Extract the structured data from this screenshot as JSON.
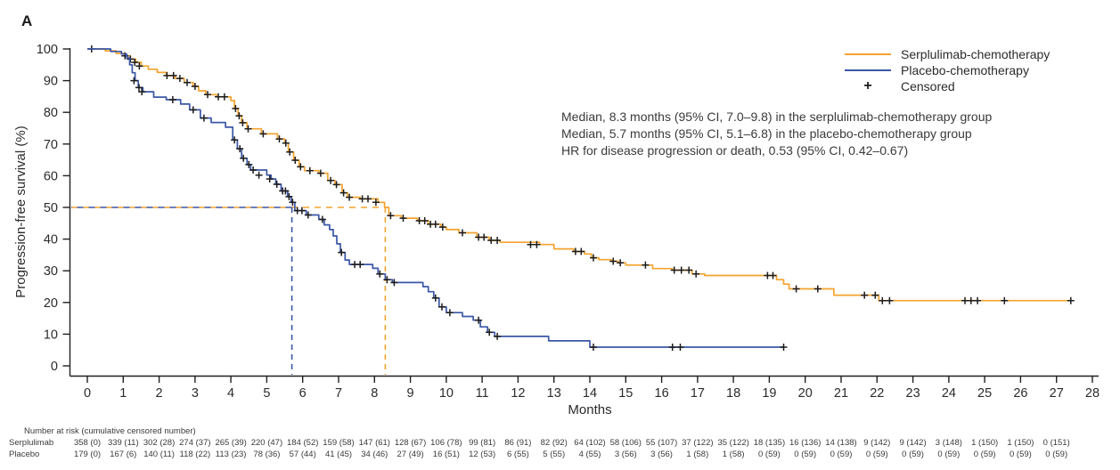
{
  "chart_data": {
    "type": "line",
    "subtype": "kaplan-meier-step-curves",
    "panel_label": "A",
    "xlabel": "Months",
    "ylabel": "Progression-free survival (%)",
    "xlim": [
      0,
      28
    ],
    "ylim": [
      0,
      100
    ],
    "xticks": [
      0,
      1,
      2,
      3,
      4,
      5,
      6,
      7,
      8,
      9,
      10,
      11,
      12,
      13,
      14,
      15,
      16,
      17,
      18,
      19,
      20,
      21,
      22,
      23,
      24,
      25,
      26,
      27,
      28
    ],
    "yticks": [
      0,
      10,
      20,
      30,
      40,
      50,
      60,
      70,
      80,
      90,
      100
    ],
    "grid": false,
    "legend_position": "top-right",
    "colors": {
      "serplulimab": "#F5A32F",
      "placebo": "#3A57A7",
      "censor": "#1c1c1c",
      "axis": "#231f20"
    },
    "medians": {
      "serplulimab_months": 8.3,
      "placebo_months": 5.7,
      "guide_percent": 50
    },
    "annotations": [
      "Median, 8.3 months (95% CI, 7.0–9.8) in the serplulimab-chemotherapy group",
      "Median, 5.7 months (95% CI, 5.1–6.8) in the placebo-chemotherapy group",
      "HR for disease progression or death, 0.53 (95% CI, 0.42–0.67)"
    ],
    "legend": {
      "entries": [
        {
          "label": "Serplulimab-chemotherapy",
          "swatch": "line",
          "color_key": "serplulimab"
        },
        {
          "label": "Placebo-chemotherapy",
          "swatch": "line",
          "color_key": "placebo"
        },
        {
          "label": "Censored",
          "swatch": "plus"
        }
      ]
    },
    "series": [
      {
        "name": "Serplulimab-chemotherapy",
        "color_key": "serplulimab",
        "steps": [
          [
            0,
            100
          ],
          [
            0.5,
            99.4
          ],
          [
            0.8,
            98.6
          ],
          [
            1.05,
            97.8
          ],
          [
            1.2,
            96.8
          ],
          [
            1.35,
            95.8
          ],
          [
            1.5,
            94.6
          ],
          [
            1.7,
            93.6
          ],
          [
            1.95,
            92.6
          ],
          [
            2.2,
            91.6
          ],
          [
            2.45,
            90.7
          ],
          [
            2.7,
            89.4
          ],
          [
            2.95,
            88.2
          ],
          [
            3.1,
            86.8
          ],
          [
            3.3,
            85.6
          ],
          [
            3.6,
            84.9
          ],
          [
            4.0,
            83.7
          ],
          [
            4.1,
            81.2
          ],
          [
            4.2,
            78.9
          ],
          [
            4.3,
            76.7
          ],
          [
            4.45,
            74.8
          ],
          [
            4.85,
            73.2
          ],
          [
            5.3,
            71.6
          ],
          [
            5.5,
            70.3
          ],
          [
            5.6,
            67.5
          ],
          [
            5.75,
            64.9
          ],
          [
            5.9,
            62.8
          ],
          [
            6.05,
            61.6
          ],
          [
            6.45,
            60.8
          ],
          [
            6.7,
            58.5
          ],
          [
            6.9,
            57.2
          ],
          [
            7.1,
            54.6
          ],
          [
            7.25,
            53.2
          ],
          [
            7.6,
            52.7
          ],
          [
            8.1,
            51.6
          ],
          [
            8.28,
            50
          ],
          [
            8.4,
            47.4
          ],
          [
            8.75,
            46.6
          ],
          [
            9.2,
            45.8
          ],
          [
            9.5,
            44.7
          ],
          [
            9.85,
            43.8
          ],
          [
            10.0,
            43.0
          ],
          [
            10.35,
            42.0
          ],
          [
            10.85,
            40.6
          ],
          [
            11.2,
            39.6
          ],
          [
            11.5,
            39.0
          ],
          [
            12.6,
            38.3
          ],
          [
            13.0,
            36.9
          ],
          [
            13.55,
            36.1
          ],
          [
            13.85,
            35.3
          ],
          [
            14.05,
            34.1
          ],
          [
            14.25,
            33.5
          ],
          [
            14.6,
            33.0
          ],
          [
            14.8,
            32.5
          ],
          [
            15.0,
            31.8
          ],
          [
            15.75,
            30.7
          ],
          [
            16.3,
            30.2
          ],
          [
            16.85,
            29.0
          ],
          [
            17.2,
            28.5
          ],
          [
            19.2,
            27.2
          ],
          [
            19.4,
            25.8
          ],
          [
            19.55,
            24.3
          ],
          [
            20.8,
            22.3
          ],
          [
            22.05,
            20.6
          ],
          [
            27.4,
            20.6
          ]
        ],
        "censors": [
          [
            0.12,
            100
          ],
          [
            1.05,
            97.8
          ],
          [
            1.2,
            96.8
          ],
          [
            1.32,
            95.8
          ],
          [
            1.45,
            94.6
          ],
          [
            2.22,
            91.6
          ],
          [
            2.4,
            91.6
          ],
          [
            2.58,
            90.7
          ],
          [
            2.78,
            89.4
          ],
          [
            3.0,
            88.2
          ],
          [
            3.35,
            85.6
          ],
          [
            3.65,
            84.9
          ],
          [
            3.82,
            84.9
          ],
          [
            4.13,
            81.2
          ],
          [
            4.23,
            78.9
          ],
          [
            4.33,
            76.7
          ],
          [
            4.48,
            74.8
          ],
          [
            4.9,
            73.2
          ],
          [
            5.35,
            71.6
          ],
          [
            5.53,
            70.3
          ],
          [
            5.64,
            67.5
          ],
          [
            5.79,
            64.9
          ],
          [
            5.94,
            62.8
          ],
          [
            6.2,
            61.6
          ],
          [
            6.5,
            60.8
          ],
          [
            6.78,
            58.5
          ],
          [
            6.94,
            57.2
          ],
          [
            7.14,
            54.6
          ],
          [
            7.3,
            53.2
          ],
          [
            7.66,
            52.7
          ],
          [
            7.82,
            52.7
          ],
          [
            8.04,
            51.6
          ],
          [
            8.45,
            47.4
          ],
          [
            8.8,
            46.6
          ],
          [
            9.25,
            45.8
          ],
          [
            9.4,
            45.8
          ],
          [
            9.56,
            44.7
          ],
          [
            9.7,
            44.7
          ],
          [
            9.9,
            43.8
          ],
          [
            10.45,
            42.0
          ],
          [
            10.9,
            40.6
          ],
          [
            11.05,
            40.6
          ],
          [
            11.25,
            39.6
          ],
          [
            11.42,
            39.6
          ],
          [
            12.35,
            38.3
          ],
          [
            12.52,
            38.3
          ],
          [
            13.6,
            36.1
          ],
          [
            13.76,
            36.1
          ],
          [
            14.1,
            34.1
          ],
          [
            14.65,
            33.0
          ],
          [
            14.85,
            32.5
          ],
          [
            15.55,
            31.8
          ],
          [
            16.35,
            30.2
          ],
          [
            16.55,
            30.2
          ],
          [
            16.76,
            30.2
          ],
          [
            16.96,
            29.0
          ],
          [
            18.95,
            28.5
          ],
          [
            19.1,
            28.5
          ],
          [
            19.75,
            24.3
          ],
          [
            20.35,
            24.3
          ],
          [
            21.65,
            22.3
          ],
          [
            21.95,
            22.3
          ],
          [
            22.15,
            20.6
          ],
          [
            22.35,
            20.6
          ],
          [
            24.45,
            20.6
          ],
          [
            24.62,
            20.6
          ],
          [
            24.8,
            20.6
          ],
          [
            25.55,
            20.6
          ],
          [
            27.4,
            20.6
          ]
        ]
      },
      {
        "name": "Placebo-chemotherapy",
        "color_key": "placebo",
        "steps": [
          [
            0,
            100
          ],
          [
            0.65,
            99.2
          ],
          [
            0.95,
            98.4
          ],
          [
            1.1,
            97.2
          ],
          [
            1.18,
            95.0
          ],
          [
            1.25,
            92.5
          ],
          [
            1.33,
            90.0
          ],
          [
            1.42,
            87.8
          ],
          [
            1.55,
            86.5
          ],
          [
            1.85,
            84.8
          ],
          [
            2.2,
            84.0
          ],
          [
            2.6,
            82.6
          ],
          [
            2.85,
            80.8
          ],
          [
            3.15,
            78.2
          ],
          [
            3.45,
            76.8
          ],
          [
            3.85,
            75.3
          ],
          [
            4.05,
            71.3
          ],
          [
            4.18,
            68.5
          ],
          [
            4.3,
            65.5
          ],
          [
            4.45,
            63.5
          ],
          [
            4.55,
            61.8
          ],
          [
            5.0,
            60.2
          ],
          [
            5.12,
            59.0
          ],
          [
            5.25,
            57.3
          ],
          [
            5.4,
            55.2
          ],
          [
            5.58,
            53.4
          ],
          [
            5.68,
            51.6
          ],
          [
            5.78,
            49.0
          ],
          [
            6.1,
            47.6
          ],
          [
            6.45,
            46.2
          ],
          [
            6.6,
            44.5
          ],
          [
            6.75,
            43.0
          ],
          [
            6.85,
            41.0
          ],
          [
            6.95,
            38.5
          ],
          [
            7.05,
            35.8
          ],
          [
            7.18,
            33.4
          ],
          [
            7.3,
            32.0
          ],
          [
            7.95,
            30.8
          ],
          [
            8.1,
            29.0
          ],
          [
            8.3,
            27.2
          ],
          [
            8.5,
            26.3
          ],
          [
            9.35,
            25.0
          ],
          [
            9.5,
            23.4
          ],
          [
            9.65,
            21.4
          ],
          [
            9.8,
            18.6
          ],
          [
            10.0,
            16.8
          ],
          [
            10.45,
            15.6
          ],
          [
            10.75,
            14.4
          ],
          [
            10.95,
            12.3
          ],
          [
            11.15,
            10.6
          ],
          [
            11.35,
            9.3
          ],
          [
            12.85,
            7.9
          ],
          [
            14.0,
            5.9
          ],
          [
            19.4,
            5.9
          ]
        ],
        "censors": [
          [
            1.3,
            90.0
          ],
          [
            1.44,
            87.8
          ],
          [
            1.52,
            86.5
          ],
          [
            2.38,
            84.0
          ],
          [
            2.95,
            80.8
          ],
          [
            3.25,
            78.2
          ],
          [
            4.1,
            71.3
          ],
          [
            4.25,
            68.5
          ],
          [
            4.35,
            65.5
          ],
          [
            4.5,
            63.5
          ],
          [
            4.62,
            61.8
          ],
          [
            4.78,
            60.2
          ],
          [
            5.08,
            59.0
          ],
          [
            5.28,
            57.3
          ],
          [
            5.44,
            55.2
          ],
          [
            5.52,
            55.2
          ],
          [
            5.62,
            53.4
          ],
          [
            5.72,
            51.6
          ],
          [
            5.85,
            49.0
          ],
          [
            5.98,
            49.0
          ],
          [
            6.15,
            47.6
          ],
          [
            6.55,
            46.2
          ],
          [
            7.08,
            35.8
          ],
          [
            7.45,
            32.0
          ],
          [
            7.6,
            32.0
          ],
          [
            8.15,
            29.0
          ],
          [
            8.35,
            27.2
          ],
          [
            8.55,
            26.3
          ],
          [
            9.7,
            21.4
          ],
          [
            9.88,
            18.6
          ],
          [
            10.1,
            16.8
          ],
          [
            10.9,
            14.4
          ],
          [
            11.2,
            10.6
          ],
          [
            11.42,
            9.3
          ],
          [
            14.1,
            5.9
          ],
          [
            16.3,
            5.9
          ],
          [
            16.52,
            5.9
          ],
          [
            19.4,
            5.9
          ]
        ]
      }
    ],
    "risk_table": {
      "title": "Number at risk (cumulative censored number)",
      "months": [
        0,
        1,
        2,
        3,
        4,
        5,
        6,
        7,
        8,
        9,
        10,
        11,
        12,
        13,
        14,
        15,
        16,
        17,
        18,
        19,
        20,
        21,
        22,
        23,
        24,
        25,
        26,
        27
      ],
      "rows": [
        {
          "label": "Serplulimab",
          "values": [
            "358 (0)",
            "339 (11)",
            "302 (28)",
            "274 (37)",
            "265 (39)",
            "220 (47)",
            "184 (52)",
            "159 (58)",
            "147 (61)",
            "128 (67)",
            "106 (78)",
            "99 (81)",
            "86 (91)",
            "82 (92)",
            "64 (102)",
            "58 (106)",
            "55 (107)",
            "37 (122)",
            "35 (122)",
            "18 (135)",
            "16 (136)",
            "14 (138)",
            "9 (142)",
            "9 (142)",
            "3 (148)",
            "1 (150)",
            "1 (150)",
            "0 (151)"
          ]
        },
        {
          "label": "Placebo",
          "values": [
            "179 (0)",
            "167 (6)",
            "140 (11)",
            "118 (22)",
            "113 (23)",
            "78 (36)",
            "57 (44)",
            "41 (45)",
            "34 (46)",
            "27 (49)",
            "16 (51)",
            "12 (53)",
            "6 (55)",
            "5 (55)",
            "4 (55)",
            "3 (56)",
            "3 (56)",
            "1 (58)",
            "1 (58)",
            "0 (59)",
            "0 (59)",
            "0 (59)",
            "0 (59)",
            "0 (59)",
            "0 (59)",
            "0 (59)",
            "0 (59)",
            "0 (59)"
          ]
        }
      ]
    }
  }
}
